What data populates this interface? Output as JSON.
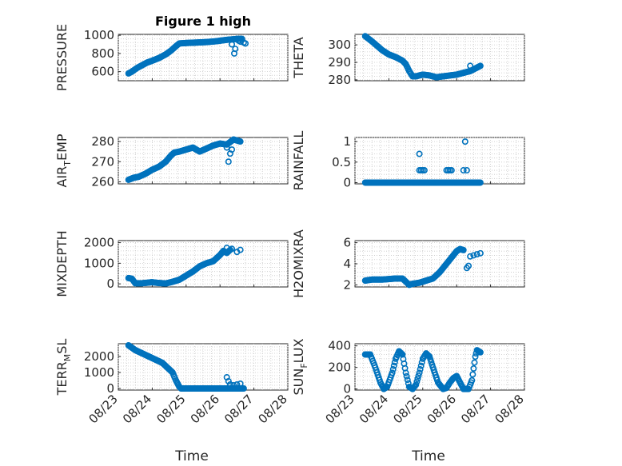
{
  "figure": {
    "background": "#ffffff",
    "marker_color": "#0072bd",
    "axis_color": "#262626"
  },
  "chart_data": [
    {
      "type": "scatter",
      "title": "Figure 1 high",
      "ylabel": "PRESSURE",
      "xlim": [
        0,
        5
      ],
      "ylim": [
        500,
        1010
      ],
      "yticks": [
        600,
        800,
        1000
      ],
      "ytick_labels": [
        "600",
        "800",
        "1000"
      ],
      "xticks": [
        0,
        1,
        2,
        3,
        4,
        5
      ],
      "xtick_labels": [],
      "xlabel": "",
      "grid": true,
      "segments": [
        [
          0.3,
          580
        ],
        [
          0.4,
          600
        ],
        [
          0.55,
          640
        ],
        [
          0.7,
          670
        ],
        [
          0.85,
          700
        ],
        [
          1.0,
          720
        ],
        [
          1.2,
          750
        ],
        [
          1.4,
          790
        ],
        [
          1.55,
          830
        ],
        [
          1.7,
          880
        ],
        [
          1.8,
          910
        ],
        [
          2.0,
          915
        ],
        [
          2.3,
          920
        ],
        [
          2.6,
          925
        ],
        [
          2.9,
          935
        ],
        [
          3.2,
          950
        ],
        [
          3.5,
          960
        ],
        [
          3.65,
          960
        ]
      ],
      "extra": [
        [
          3.35,
          900
        ],
        [
          3.42,
          800
        ],
        [
          3.45,
          850
        ],
        [
          3.55,
          940
        ],
        [
          3.6,
          930
        ],
        [
          3.7,
          920
        ],
        [
          3.75,
          910
        ]
      ]
    },
    {
      "type": "scatter",
      "title": "",
      "ylabel": "THETA",
      "xlim": [
        0,
        5
      ],
      "ylim": [
        279.5,
        306
      ],
      "yticks": [
        280,
        290,
        300
      ],
      "ytick_labels": [
        "280",
        "290",
        "300"
      ],
      "xticks": [
        0,
        1,
        2,
        3,
        4,
        5
      ],
      "xtick_labels": [],
      "xlabel": "",
      "grid": true,
      "segments": [
        [
          0.3,
          305
        ],
        [
          0.5,
          302
        ],
        [
          0.8,
          297
        ],
        [
          1.0,
          294.5
        ],
        [
          1.2,
          293
        ],
        [
          1.4,
          291
        ],
        [
          1.5,
          289
        ],
        [
          1.6,
          285
        ],
        [
          1.7,
          282
        ],
        [
          1.8,
          282
        ],
        [
          2.0,
          283
        ],
        [
          2.2,
          282.5
        ],
        [
          2.4,
          281.5
        ],
        [
          2.6,
          282
        ],
        [
          2.8,
          282.5
        ],
        [
          3.0,
          283
        ],
        [
          3.2,
          284
        ],
        [
          3.4,
          285
        ],
        [
          3.6,
          287
        ],
        [
          3.7,
          288
        ]
      ],
      "extra": [
        [
          3.4,
          288
        ]
      ]
    },
    {
      "type": "scatter",
      "title": "",
      "ylabel": "AIR_TEMP",
      "xlim": [
        0,
        5
      ],
      "ylim": [
        259,
        282
      ],
      "yticks": [
        260,
        270,
        280
      ],
      "ytick_labels": [
        "260",
        "270",
        "280"
      ],
      "xticks": [
        0,
        1,
        2,
        3,
        4,
        5
      ],
      "xtick_labels": [],
      "xlabel": "",
      "grid": true,
      "segments": [
        [
          0.3,
          261
        ],
        [
          0.45,
          262
        ],
        [
          0.6,
          262.5
        ],
        [
          0.8,
          264
        ],
        [
          1.0,
          266
        ],
        [
          1.2,
          267.5
        ],
        [
          1.4,
          270
        ],
        [
          1.55,
          273
        ],
        [
          1.65,
          274.5
        ],
        [
          1.8,
          275
        ],
        [
          2.0,
          276
        ],
        [
          2.2,
          277
        ],
        [
          2.4,
          275
        ],
        [
          2.6,
          276.5
        ],
        [
          2.8,
          278
        ],
        [
          3.0,
          279
        ],
        [
          3.2,
          278.5
        ],
        [
          3.4,
          281
        ],
        [
          3.6,
          280
        ]
      ],
      "extra": [
        [
          3.2,
          277
        ],
        [
          3.25,
          270
        ],
        [
          3.3,
          274
        ],
        [
          3.35,
          276
        ]
      ]
    },
    {
      "type": "scatter",
      "title": "",
      "ylabel": "RAINFALL",
      "xlim": [
        0,
        5
      ],
      "ylim": [
        -0.03,
        1.1
      ],
      "yticks": [
        0,
        0.5,
        1
      ],
      "ytick_labels": [
        "0",
        "0.5",
        "1"
      ],
      "xticks": [
        0,
        1,
        2,
        3,
        4,
        5
      ],
      "xtick_labels": [],
      "xlabel": "",
      "grid": true,
      "segments": [
        [
          0.3,
          0
        ],
        [
          3.7,
          0
        ]
      ],
      "extra": [
        [
          1.9,
          0.7
        ],
        [
          1.9,
          0.3
        ],
        [
          1.95,
          0.3
        ],
        [
          2.0,
          0.3
        ],
        [
          2.05,
          0.3
        ],
        [
          2.7,
          0.3
        ],
        [
          2.75,
          0.3
        ],
        [
          2.8,
          0.3
        ],
        [
          2.85,
          0.3
        ],
        [
          3.2,
          0.3
        ],
        [
          3.25,
          1.0
        ],
        [
          3.3,
          0.3
        ]
      ]
    },
    {
      "type": "scatter",
      "title": "",
      "ylabel": "MIXDEPTH",
      "xlim": [
        0,
        5
      ],
      "ylim": [
        -150,
        2100
      ],
      "yticks": [
        0,
        1000,
        2000
      ],
      "ytick_labels": [
        "0",
        "1000",
        "2000"
      ],
      "xticks": [
        0,
        1,
        2,
        3,
        4,
        5
      ],
      "xtick_labels": [],
      "xlabel": "",
      "grid": true,
      "segments": [
        [
          0.3,
          280
        ],
        [
          0.4,
          250
        ],
        [
          0.5,
          30
        ],
        [
          0.7,
          30
        ],
        [
          1.0,
          80
        ],
        [
          1.2,
          40
        ],
        [
          1.4,
          20
        ],
        [
          1.6,
          100
        ],
        [
          1.8,
          200
        ],
        [
          2.0,
          400
        ],
        [
          2.2,
          600
        ],
        [
          2.4,
          850
        ],
        [
          2.6,
          1000
        ],
        [
          2.8,
          1100
        ],
        [
          3.0,
          1400
        ],
        [
          3.1,
          1600
        ],
        [
          3.2,
          1500
        ],
        [
          3.3,
          1650
        ]
      ],
      "extra": [
        [
          3.2,
          1750
        ],
        [
          3.35,
          1700
        ],
        [
          3.5,
          1550
        ],
        [
          3.6,
          1650
        ]
      ]
    },
    {
      "type": "scatter",
      "title": "",
      "ylabel": "H2OMIXRA",
      "xlim": [
        0,
        5
      ],
      "ylim": [
        1.8,
        6.2
      ],
      "yticks": [
        2,
        4,
        6
      ],
      "ytick_labels": [
        "2",
        "4",
        "6"
      ],
      "xticks": [
        0,
        1,
        2,
        3,
        4,
        5
      ],
      "xtick_labels": [],
      "xlabel": "",
      "grid": true,
      "segments": [
        [
          0.3,
          2.4
        ],
        [
          0.5,
          2.5
        ],
        [
          0.8,
          2.5
        ],
        [
          1.0,
          2.55
        ],
        [
          1.2,
          2.6
        ],
        [
          1.4,
          2.6
        ],
        [
          1.5,
          2.3
        ],
        [
          1.6,
          2.0
        ],
        [
          1.7,
          2.1
        ],
        [
          1.9,
          2.2
        ],
        [
          2.1,
          2.4
        ],
        [
          2.3,
          2.6
        ],
        [
          2.5,
          3.2
        ],
        [
          2.7,
          4.0
        ],
        [
          2.9,
          4.8
        ],
        [
          3.0,
          5.2
        ],
        [
          3.1,
          5.4
        ],
        [
          3.2,
          5.3
        ]
      ],
      "extra": [
        [
          3.3,
          3.6
        ],
        [
          3.35,
          3.8
        ],
        [
          3.4,
          4.7
        ],
        [
          3.5,
          4.8
        ],
        [
          3.6,
          4.9
        ],
        [
          3.7,
          5.0
        ]
      ]
    },
    {
      "type": "scatter",
      "title": "",
      "ylabel": "TERR_MSL",
      "xlim": [
        0,
        5
      ],
      "ylim": [
        -100,
        2800
      ],
      "yticks": [
        0,
        1000,
        2000
      ],
      "ytick_labels": [
        "0",
        "1000",
        "2000"
      ],
      "xticks": [
        0,
        1,
        2,
        3,
        4,
        5
      ],
      "xtick_labels": [
        "08/23",
        "08/24",
        "08/25",
        "08/26",
        "08/27",
        "08/28"
      ],
      "xlabel": "Time",
      "grid": true,
      "segments": [
        [
          0.3,
          2700
        ],
        [
          0.5,
          2400
        ],
        [
          0.7,
          2200
        ],
        [
          0.9,
          2000
        ],
        [
          1.1,
          1800
        ],
        [
          1.3,
          1600
        ],
        [
          1.45,
          1300
        ],
        [
          1.6,
          1000
        ],
        [
          1.7,
          500
        ],
        [
          1.8,
          100
        ],
        [
          1.85,
          0
        ],
        [
          3.7,
          0
        ]
      ],
      "extra": [
        [
          3.2,
          700
        ],
        [
          3.25,
          450
        ],
        [
          3.3,
          250
        ],
        [
          3.4,
          200
        ],
        [
          3.5,
          250
        ],
        [
          3.6,
          300
        ]
      ]
    },
    {
      "type": "scatter",
      "title": "",
      "ylabel": "SUN_FLUX",
      "xlim": [
        0,
        5
      ],
      "ylim": [
        -10,
        420
      ],
      "yticks": [
        0,
        200,
        400
      ],
      "ytick_labels": [
        "0",
        "200",
        "400"
      ],
      "xticks": [
        0,
        1,
        2,
        3,
        4,
        5
      ],
      "xtick_labels": [
        "08/23",
        "08/24",
        "08/25",
        "08/26",
        "08/27",
        "08/28"
      ],
      "xlabel": "Time",
      "grid": true,
      "segments": [
        [
          0.3,
          320
        ],
        [
          0.45,
          320
        ],
        [
          0.6,
          200
        ],
        [
          0.75,
          60
        ],
        [
          0.85,
          0
        ],
        [
          0.95,
          20
        ],
        [
          1.1,
          150
        ],
        [
          1.2,
          280
        ],
        [
          1.3,
          350
        ],
        [
          1.4,
          320
        ],
        [
          1.5,
          150
        ],
        [
          1.6,
          20
        ],
        [
          1.7,
          0
        ],
        [
          1.8,
          40
        ],
        [
          1.9,
          150
        ],
        [
          2.0,
          280
        ],
        [
          2.1,
          330
        ],
        [
          2.2,
          300
        ],
        [
          2.3,
          200
        ],
        [
          2.45,
          60
        ],
        [
          2.6,
          0
        ],
        [
          2.7,
          10
        ],
        [
          2.8,
          60
        ],
        [
          2.9,
          100
        ],
        [
          3.0,
          120
        ],
        [
          3.1,
          60
        ],
        [
          3.2,
          0
        ],
        [
          3.35,
          0
        ],
        [
          3.45,
          80
        ],
        [
          3.55,
          300
        ],
        [
          3.6,
          360
        ],
        [
          3.7,
          340
        ]
      ],
      "extra": []
    }
  ]
}
